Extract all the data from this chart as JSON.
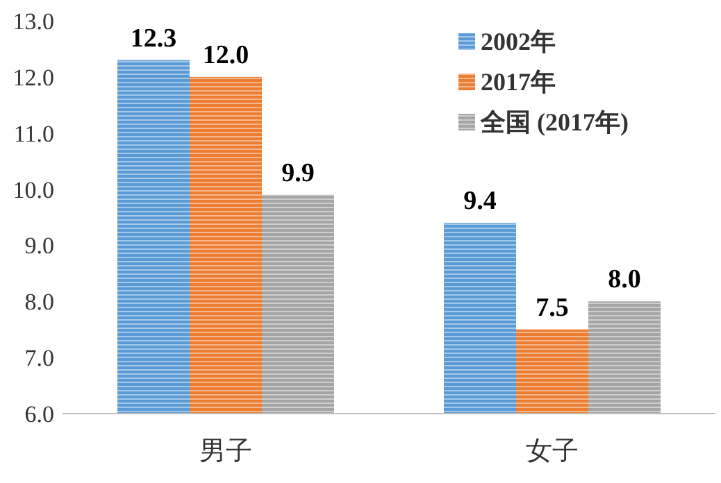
{
  "chart_data": {
    "type": "bar",
    "categories": [
      "男子",
      "女子"
    ],
    "series": [
      {
        "name": "2002年",
        "color": "#5b9bd5",
        "values": [
          12.3,
          9.4
        ],
        "value_labels": [
          "12.3",
          "9.4"
        ]
      },
      {
        "name": "2017年",
        "color": "#ed7d31",
        "values": [
          12.0,
          7.5
        ],
        "value_labels": [
          "12.0",
          "7.5"
        ]
      },
      {
        "name": "全国 (2017年)",
        "color": "#a5a5a5",
        "values": [
          9.9,
          8.0
        ],
        "value_labels": [
          "9.9",
          "8.0"
        ]
      }
    ],
    "ylim": [
      6,
      13
    ],
    "yticks": [
      {
        "value": 6,
        "label": "6.0"
      },
      {
        "value": 7,
        "label": "7.0"
      },
      {
        "value": 8,
        "label": "8.0"
      },
      {
        "value": 9,
        "label": "9.0"
      },
      {
        "value": 10,
        "label": "10.0"
      },
      {
        "value": 11,
        "label": "11.0"
      },
      {
        "value": 12,
        "label": "12.0"
      },
      {
        "value": 13,
        "label": "13.0"
      }
    ],
    "legend": "top right",
    "grid": false
  }
}
